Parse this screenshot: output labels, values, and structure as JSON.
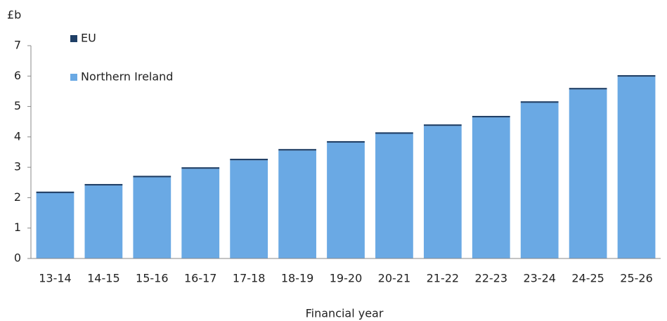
{
  "chart_data": {
    "type": "bar",
    "stacked": true,
    "y_axis_label": "£b",
    "x_axis_label": "Financial year",
    "categories": [
      "13-14",
      "14-15",
      "15-16",
      "16-17",
      "17-18",
      "18-19",
      "19-20",
      "20-21",
      "21-22",
      "22-23",
      "23-24",
      "24-25",
      "25-26"
    ],
    "series": [
      {
        "name": "Northern Ireland",
        "color": "#6aa9e4",
        "values": [
          2.15,
          2.4,
          2.67,
          2.95,
          3.23,
          3.55,
          3.81,
          4.1,
          4.36,
          4.64,
          5.12,
          5.56,
          5.98
        ]
      },
      {
        "name": "EU",
        "color": "#1f3f66",
        "values": [
          0.05,
          0.05,
          0.05,
          0.05,
          0.05,
          0.05,
          0.05,
          0.05,
          0.05,
          0.05,
          0.05,
          0.05,
          0.05
        ]
      }
    ],
    "ylim": [
      0,
      7
    ],
    "yticks": [
      0,
      1,
      2,
      3,
      4,
      5,
      6,
      7
    ],
    "grid": false
  }
}
